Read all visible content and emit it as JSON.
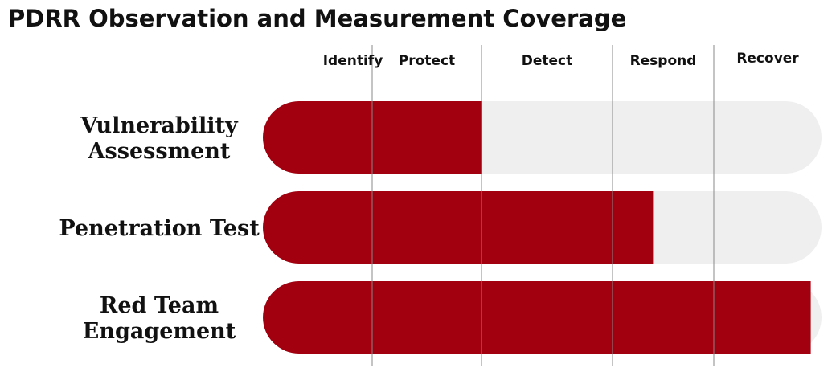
{
  "chart_data": {
    "type": "bar",
    "orientation": "horizontal",
    "title": "PDRR Observation and Measurement Coverage",
    "phases": [
      "Identify",
      "Protect",
      "Detect",
      "Respond",
      "Recover"
    ],
    "categories": [
      [
        "Vulnerability",
        "Assessment"
      ],
      [
        "Penetration Test"
      ],
      [
        "Red Team",
        "Engagement"
      ]
    ],
    "values": [
      2,
      3.4,
      4.9
    ],
    "xlim": [
      0,
      5
    ],
    "colors": {
      "bar": "#a3000f",
      "track": "#efefef",
      "divider": "#888888"
    }
  }
}
